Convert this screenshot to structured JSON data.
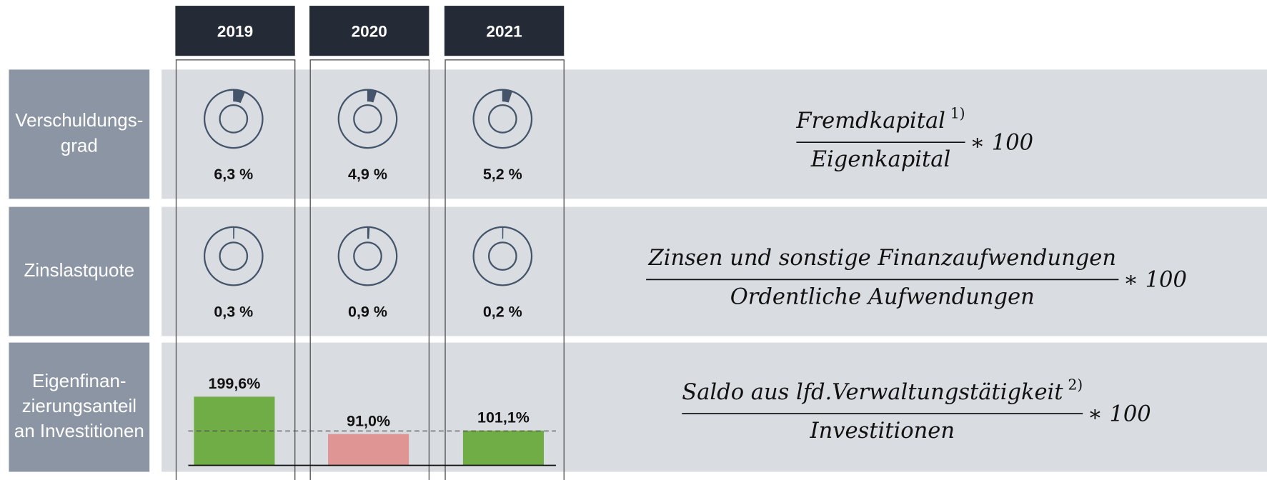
{
  "years": [
    "2019",
    "2020",
    "2021"
  ],
  "rows": [
    {
      "label": [
        "Verschuldungs-",
        "grad"
      ],
      "type": "donut",
      "color": "#44546a",
      "values": [
        6.3,
        4.9,
        5.2
      ],
      "value_labels": [
        "6,3 %",
        "4,9 %",
        "5,2 %"
      ],
      "formula": {
        "numerator": "Fremdkapital",
        "numerator_note": "1)",
        "denominator": "Eigenkapital",
        "factor": "∗ 100"
      }
    },
    {
      "label": [
        "Zinslastquote"
      ],
      "type": "donut",
      "color": "#44546a",
      "values": [
        0.3,
        0.9,
        0.2
      ],
      "value_labels": [
        "0,3 %",
        "0,9 %",
        "0,2 %"
      ],
      "formula": {
        "numerator": "Zinsen und sonstige Finanzaufwendungen",
        "denominator": "Ordentliche Aufwendungen",
        "factor": "∗ 100"
      }
    },
    {
      "label": [
        "Eigenfinan-",
        "zierungsanteil",
        "an Investitionen"
      ],
      "type": "bar",
      "values": [
        199.6,
        91.0,
        101.1
      ],
      "value_labels": [
        "199,6%",
        "91,0%",
        "101,1%"
      ],
      "colors": [
        "#70ad47",
        "#de9594",
        "#70ad47"
      ],
      "reference_line": 100,
      "formula": {
        "numerator": "Saldo aus lfd.Verwaltungstätigkeit",
        "numerator_note": "2)",
        "denominator": "Investitionen",
        "factor": "∗ 100"
      }
    }
  ]
}
